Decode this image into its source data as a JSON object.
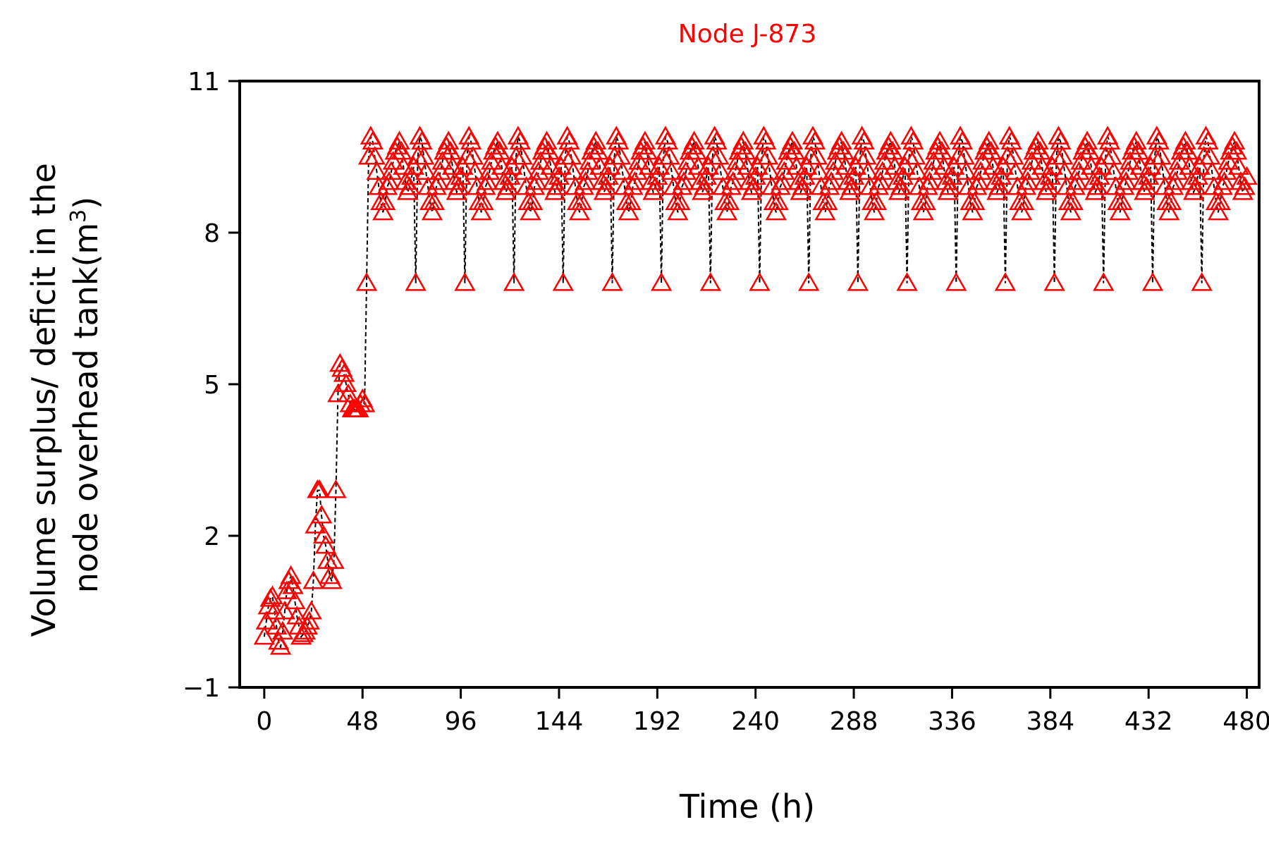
{
  "chart_data": {
    "type": "line",
    "title": "Node J-873",
    "title_color": "#ff0000",
    "xlabel": "Time (h)",
    "ylabel_line1": "Volume surplus/ deficit in the",
    "ylabel_line2": "node overhead tank(m",
    "ylabel_sup": "3",
    "ylabel_close": ")",
    "xlim": [
      -12,
      486
    ],
    "ylim": [
      -1,
      11
    ],
    "xticks": [
      0,
      48,
      96,
      144,
      192,
      240,
      288,
      336,
      384,
      432,
      480
    ],
    "yticks": [
      -1,
      2,
      5,
      8,
      11
    ],
    "ytick_labels": [
      "−1",
      "2",
      "5",
      "8",
      "11"
    ],
    "marker": "triangle-open",
    "marker_color": "#ff0000",
    "line_style": "dashed",
    "line_color": "#000000",
    "grid": false,
    "series": [
      {
        "startup_y": [
          0.0,
          0.3,
          0.6,
          0.75,
          0.8,
          0.5,
          0.2,
          -0.1,
          -0.2,
          0.1,
          0.5,
          0.9,
          1.1,
          1.2,
          1.0,
          0.7,
          0.4,
          0.2,
          0.0,
          0.05,
          0.1,
          0.2,
          0.3,
          0.5,
          1.1,
          2.2,
          2.9,
          2.9,
          2.4,
          2.0,
          1.8,
          1.5,
          1.2,
          1.1,
          1.5,
          2.9,
          4.8,
          5.4,
          5.3,
          5.2,
          5.0,
          4.8,
          4.6,
          4.5,
          4.5,
          4.5,
          4.5,
          4.6,
          4.7,
          4.6
        ],
        "x_start": 0,
        "x_step": 1,
        "periodic_pattern": [
          7.0,
          9.5,
          9.9,
          9.8,
          9.5,
          9.2,
          8.9,
          8.6,
          8.4,
          8.6,
          8.9,
          9.0,
          9.2,
          9.4,
          9.6,
          9.7,
          9.8,
          9.6,
          9.3,
          9.0,
          8.8,
          8.9,
          9.1,
          9.3
        ],
        "periodic_from": 50,
        "periodic_to": 480,
        "periodic_period": 24
      }
    ]
  }
}
